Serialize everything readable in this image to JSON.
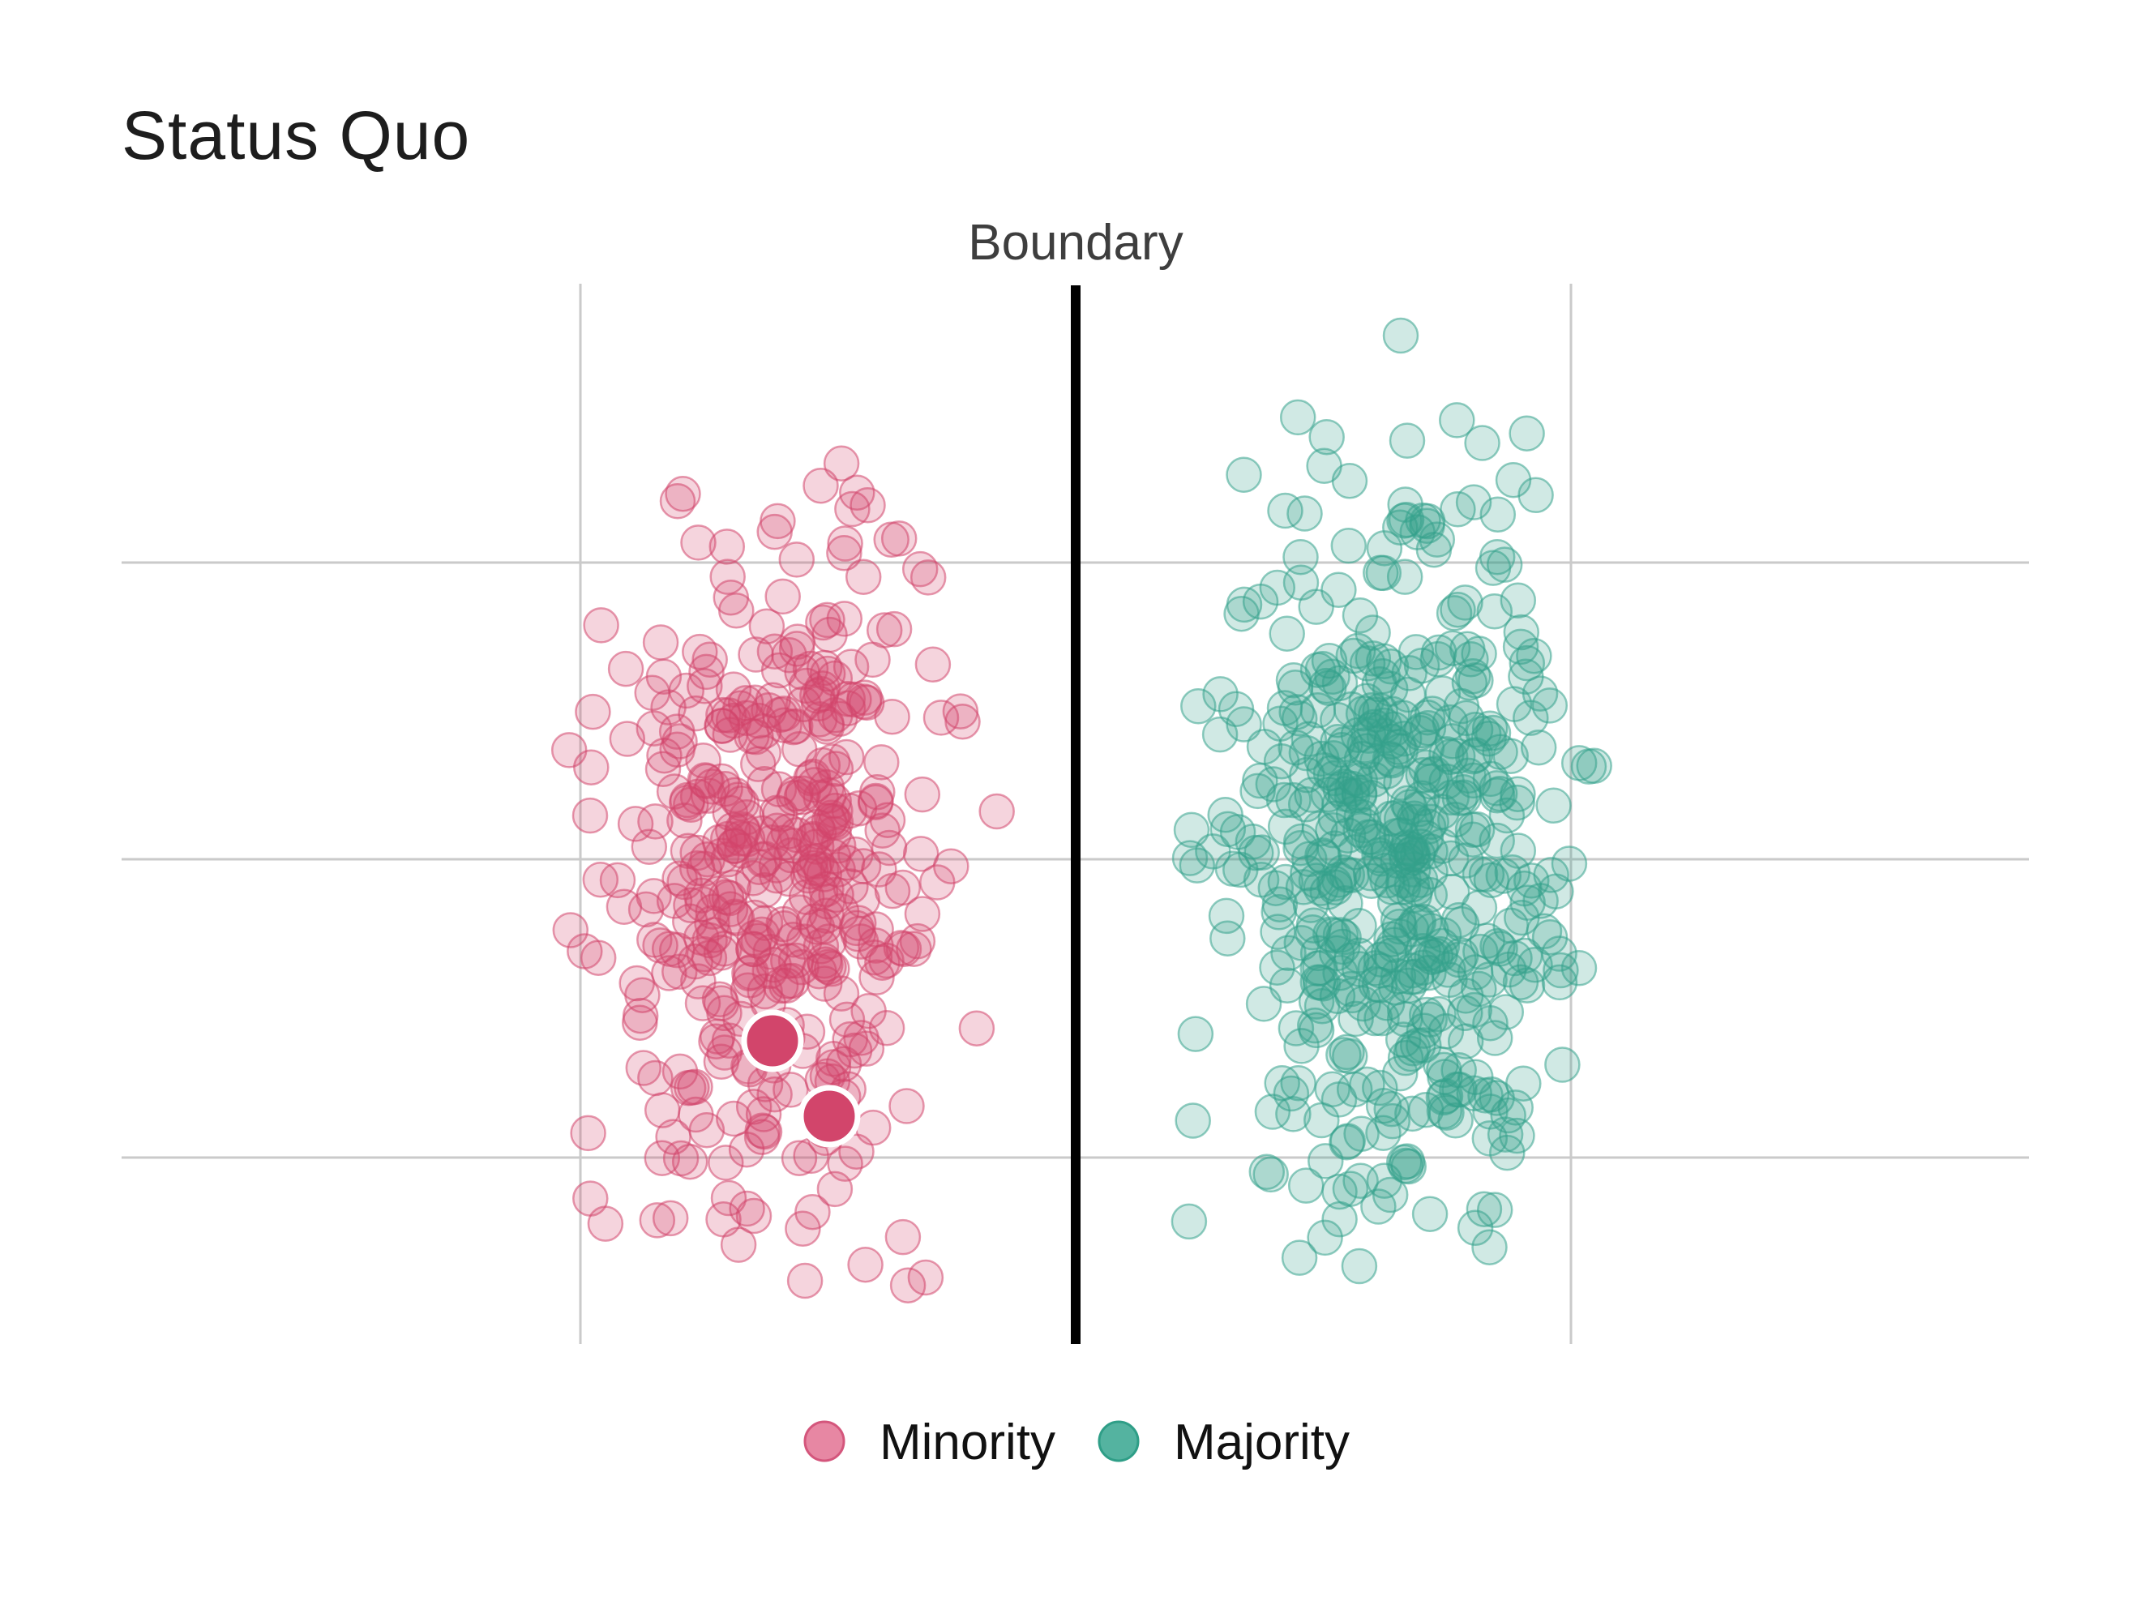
{
  "chart_data": {
    "type": "scatter",
    "title": "Status Quo",
    "grid": {
      "h_lines_y": [
        694,
        1060,
        1428
      ],
      "h_extent_x": [
        150,
        2503
      ],
      "v_lines_x": [
        716,
        1938
      ],
      "v_extent_y": [
        350,
        1658
      ],
      "color": "#cacaca",
      "line_width": 3
    },
    "boundary": {
      "label": "Boundary",
      "x": 1327,
      "y1": 352,
      "y2": 1658,
      "color": "#000000",
      "line_width": 12
    },
    "point_style": {
      "radius": 21,
      "fill_opacity": 0.23,
      "stroke_opacity": 0.55,
      "stroke_width": 2.5
    },
    "series": [
      {
        "name": "Minority",
        "color": "#d2456b",
        "n": 420,
        "center": {
          "x": 950,
          "y": 1085
        },
        "spread": {
          "x": 100,
          "y": 215
        },
        "x_range": [
          690,
          1230
        ],
        "y_range": [
          555,
          1630
        ],
        "seed": 101
      },
      {
        "name": "Majority",
        "color": "#35a28c",
        "n": 520,
        "center": {
          "x": 1718,
          "y": 1065
        },
        "spread": {
          "x": 102,
          "y": 230
        },
        "x_range": [
          1455,
          2030
        ],
        "y_range": [
          505,
          1590
        ],
        "seed": 202
      }
    ],
    "extra_points": [
      {
        "series": 1,
        "x": 1728,
        "y": 414
      }
    ],
    "highlighted_points": [
      {
        "series": 0,
        "x": 953,
        "y": 1284,
        "radius": 35,
        "ring_color": "#ffffff",
        "ring_width": 7
      },
      {
        "series": 0,
        "x": 1023,
        "y": 1377,
        "radius": 35,
        "ring_color": "#ffffff",
        "ring_width": 7
      }
    ],
    "legend_position": "bottom-center"
  },
  "legend": {
    "marker_radius": 24,
    "marker_stroke_width": 3,
    "items": [
      {
        "fill": "#e787a3",
        "stroke": "#d4567c"
      },
      {
        "fill": "#54b3a0",
        "stroke": "#2f9e87"
      }
    ]
  },
  "colors": {
    "background": "#ffffff",
    "title_text": "#1d1d1d",
    "boundary_label_text": "#3e3e3e",
    "legend_text": "#111111"
  }
}
